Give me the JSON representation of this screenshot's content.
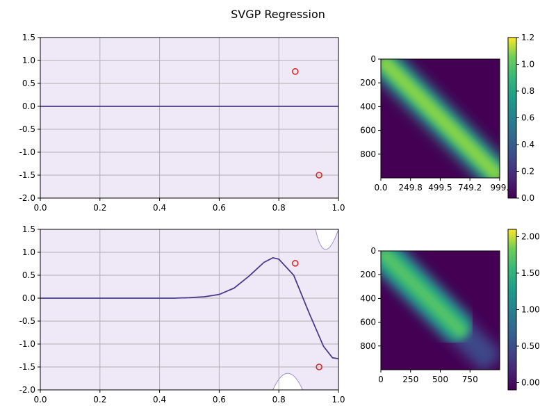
{
  "figure": {
    "title": "SVGP Regression"
  },
  "colors": {
    "band_fill": "#efe8f6",
    "mean_line": "#483d8b",
    "band_edge": "#9b8fd2",
    "points": "#d62728",
    "grid": "#b0b0b0"
  },
  "chart_data": [
    {
      "type": "line",
      "title": "",
      "xlabel": "",
      "ylabel": "",
      "xlim": [
        0,
        1
      ],
      "ylim": [
        -2,
        1.5
      ],
      "xticks": [
        "0.0",
        "0.2",
        "0.4",
        "0.6",
        "0.8",
        "1.0"
      ],
      "yticks": [
        "1.5",
        "1.0",
        "0.5",
        "0.0",
        "-0.5",
        "-1.0",
        "-1.5",
        "-2.0"
      ],
      "grid": true,
      "series": [
        {
          "x": [
            0,
            0.25,
            0.5,
            0.75,
            1.0
          ],
          "y": [
            0,
            0,
            0,
            0,
            0
          ]
        }
      ],
      "band": {
        "lower": [
          -2,
          -2,
          -2,
          -2,
          -2
        ],
        "upper": [
          1.5,
          1.5,
          1.5,
          1.5,
          1.5
        ]
      },
      "scatter": {
        "x": [
          0.855,
          0.935
        ],
        "y": [
          0.76,
          -1.5
        ]
      }
    },
    {
      "type": "heatmap",
      "colormap": "viridis",
      "xticks": [
        "0.0",
        "249.8",
        "499.5",
        "749.2",
        "999."
      ],
      "yticks": [
        "0",
        "200",
        "400",
        "600",
        "800"
      ],
      "range": [
        0,
        1000
      ],
      "colorbar": {
        "ticks": [
          "0.0",
          "0.2",
          "0.4",
          "0.6",
          "0.8",
          "1.0",
          "1.2"
        ],
        "vmin": 0,
        "vmax": 1.2
      }
    },
    {
      "type": "line",
      "title": "",
      "xlabel": "",
      "ylabel": "",
      "xlim": [
        0,
        1
      ],
      "ylim": [
        -2,
        1.5
      ],
      "xticks": [
        "0.0",
        "0.2",
        "0.4",
        "0.6",
        "0.8",
        "1.0"
      ],
      "yticks": [
        "1.5",
        "1.0",
        "0.5",
        "0.0",
        "-0.5",
        "-1.0",
        "-1.5",
        "-2.0"
      ],
      "grid": true,
      "series": [
        {
          "x": [
            0,
            0.1,
            0.2,
            0.3,
            0.4,
            0.45,
            0.5,
            0.55,
            0.6,
            0.65,
            0.7,
            0.75,
            0.78,
            0.8,
            0.85,
            0.9,
            0.95,
            0.98,
            1.0
          ],
          "y": [
            0,
            0,
            0,
            0,
            0,
            0,
            0.01,
            0.03,
            0.08,
            0.22,
            0.48,
            0.78,
            0.88,
            0.85,
            0.5,
            -0.3,
            -1.05,
            -1.3,
            -1.32
          ]
        }
      ],
      "band": {
        "upper_x": [
          0.92,
          0.95,
          0.98,
          1.0
        ],
        "upper_y": [
          1.6,
          1.03,
          1.2,
          1.5
        ],
        "lower_x": [
          0.78,
          0.83,
          0.88
        ],
        "lower_y": [
          -2.0,
          -1.64,
          -2.0
        ]
      },
      "scatter": {
        "x": [
          0.855,
          0.935
        ],
        "y": [
          0.76,
          -1.5
        ]
      }
    },
    {
      "type": "heatmap",
      "colormap": "viridis",
      "xticks": [
        "0",
        "250",
        "500",
        "750"
      ],
      "yticks": [
        "0",
        "200",
        "400",
        "600",
        "800"
      ],
      "range": [
        0,
        1000
      ],
      "colorbar": {
        "ticks": [
          "0.00",
          "0.50",
          "1.00",
          "1.50",
          "2.00"
        ],
        "vmin": -0.1,
        "vmax": 2.1
      }
    }
  ]
}
